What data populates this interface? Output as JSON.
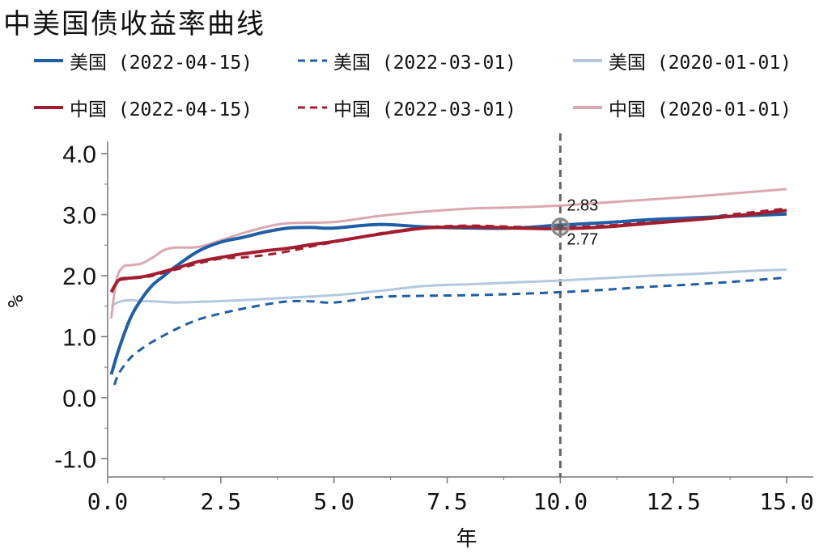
{
  "chart_data": {
    "type": "line",
    "title": "中美国债收益率曲线",
    "xlabel": "年",
    "ylabel": "%",
    "xlim": [
      0,
      15.5
    ],
    "ylim": [
      -1.3,
      4.2
    ],
    "x_ticks": [
      0,
      2.5,
      5,
      7.5,
      10,
      12.5,
      15
    ],
    "x_tick_labels": [
      "0.0",
      "2.5",
      "5.0",
      "7.5",
      "10.0",
      "12.5",
      "15.0"
    ],
    "y_ticks": [
      -1,
      0,
      1,
      2,
      3,
      4
    ],
    "y_tick_labels": [
      "-1.0",
      "0.0",
      "1.0",
      "2.0",
      "3.0",
      "4.0"
    ],
    "grid": false,
    "legend_position": "top",
    "series": [
      {
        "name": "美国 (2022-04-15)",
        "color": "#1f5fa6",
        "style": "solid",
        "width": 4,
        "x": [
          0.08,
          0.25,
          0.5,
          0.75,
          1,
          1.25,
          1.5,
          2,
          2.5,
          3,
          3.5,
          4,
          4.5,
          5,
          6,
          7,
          8,
          9,
          10,
          11,
          12,
          13,
          14,
          15
        ],
        "y": [
          0.38,
          0.8,
          1.3,
          1.62,
          1.85,
          2.0,
          2.15,
          2.4,
          2.55,
          2.63,
          2.72,
          2.78,
          2.79,
          2.78,
          2.84,
          2.8,
          2.78,
          2.78,
          2.83,
          2.87,
          2.92,
          2.95,
          2.98,
          3.01
        ]
      },
      {
        "name": "美国 (2022-03-01)",
        "color": "#1f5fa6",
        "style": "dashed",
        "width": 3,
        "x": [
          0.15,
          0.25,
          0.5,
          0.75,
          1,
          1.5,
          2,
          2.5,
          3,
          3.5,
          4,
          4.5,
          5,
          6,
          7,
          8,
          9,
          10,
          11,
          12,
          13,
          14,
          15
        ],
        "y": [
          0.21,
          0.4,
          0.65,
          0.8,
          0.92,
          1.12,
          1.28,
          1.38,
          1.46,
          1.53,
          1.58,
          1.58,
          1.56,
          1.65,
          1.67,
          1.68,
          1.7,
          1.73,
          1.77,
          1.82,
          1.86,
          1.91,
          1.97
        ]
      },
      {
        "name": "美国 (2020-01-01)",
        "color": "#b3c9e0",
        "style": "solid",
        "width": 3,
        "x": [
          0.08,
          0.25,
          0.5,
          0.75,
          1,
          1.5,
          2,
          3,
          4,
          5,
          6,
          7,
          8,
          9,
          10,
          11,
          12,
          13,
          14,
          15
        ],
        "y": [
          1.5,
          1.57,
          1.6,
          1.58,
          1.58,
          1.56,
          1.57,
          1.6,
          1.64,
          1.68,
          1.75,
          1.83,
          1.86,
          1.89,
          1.92,
          1.96,
          2.0,
          2.03,
          2.07,
          2.1
        ]
      },
      {
        "name": "中国 (2022-04-15)",
        "color": "#a31d2e",
        "style": "solid",
        "width": 4,
        "x": [
          0.08,
          0.25,
          0.5,
          0.75,
          1,
          1.5,
          2,
          2.5,
          3,
          3.5,
          4,
          4.5,
          5,
          6,
          7,
          8,
          9,
          10,
          11,
          12,
          13,
          14,
          15
        ],
        "y": [
          1.73,
          1.93,
          1.96,
          1.98,
          2.02,
          2.12,
          2.23,
          2.3,
          2.36,
          2.41,
          2.45,
          2.51,
          2.56,
          2.68,
          2.78,
          2.8,
          2.78,
          2.77,
          2.8,
          2.86,
          2.92,
          2.99,
          3.07
        ]
      },
      {
        "name": "中国 (2022-03-01)",
        "color": "#a31d2e",
        "style": "dashed",
        "width": 3,
        "x": [
          0.08,
          0.25,
          0.5,
          0.75,
          1,
          1.5,
          2,
          2.5,
          3,
          3.5,
          4,
          4.5,
          5,
          6,
          7,
          8,
          9,
          10,
          11,
          12,
          13,
          14,
          15
        ],
        "y": [
          1.75,
          1.92,
          1.95,
          1.97,
          2.0,
          2.1,
          2.2,
          2.28,
          2.3,
          2.34,
          2.4,
          2.48,
          2.55,
          2.69,
          2.79,
          2.82,
          2.8,
          2.79,
          2.82,
          2.88,
          2.94,
          3.02,
          3.1
        ]
      },
      {
        "name": "中国 (2020-01-01)",
        "color": "#dba8b1",
        "style": "solid",
        "width": 3,
        "x": [
          0.08,
          0.2,
          0.35,
          0.5,
          0.75,
          1,
          1.25,
          1.5,
          2,
          2.5,
          3,
          3.5,
          4,
          5,
          6,
          7,
          8,
          9,
          10,
          11,
          12,
          13,
          14,
          15
        ],
        "y": [
          1.3,
          1.95,
          2.15,
          2.17,
          2.2,
          2.3,
          2.42,
          2.46,
          2.47,
          2.58,
          2.7,
          2.8,
          2.86,
          2.88,
          2.98,
          3.05,
          3.1,
          3.12,
          3.15,
          3.2,
          3.25,
          3.3,
          3.36,
          3.42
        ]
      }
    ],
    "annotations": [
      {
        "x": 10,
        "y": 2.83,
        "text": "2.83"
      },
      {
        "x": 10,
        "y": 2.77,
        "text": "2.77"
      }
    ],
    "reference_line": {
      "x": 10,
      "color": "#666666",
      "style": "dashed"
    }
  }
}
